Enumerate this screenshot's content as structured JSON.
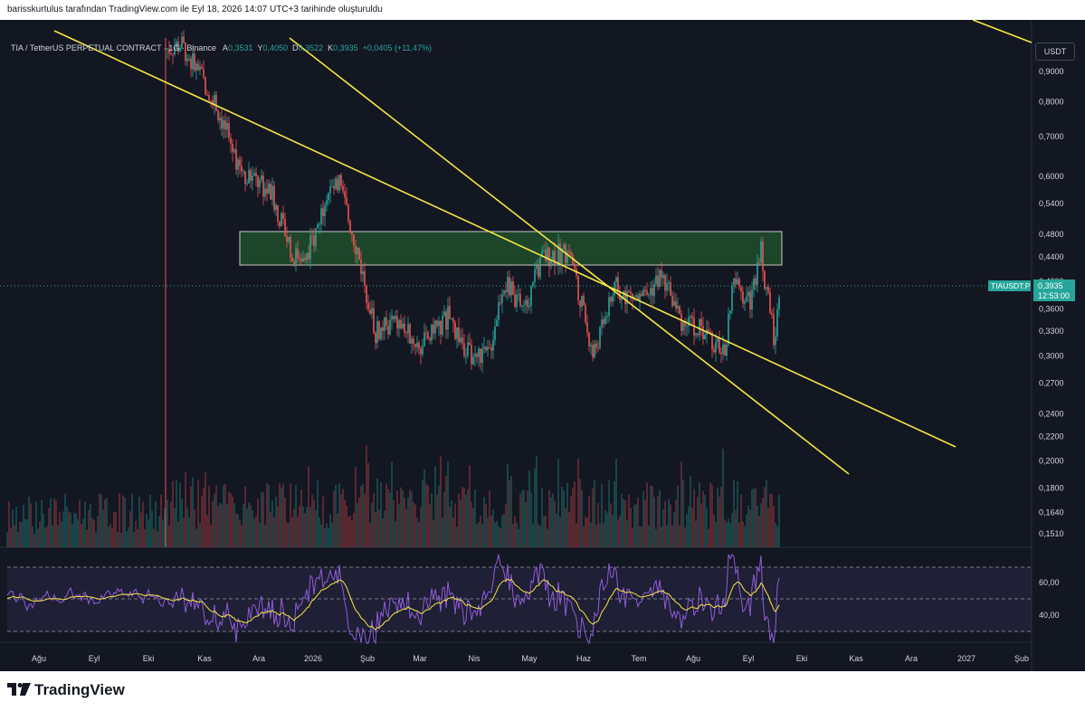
{
  "header": {
    "attribution": "barisskurtulus tarafından TradingView.com ile Eyl 18, 2026 14:07 UTC+3 tarihinde oluşturuldu"
  },
  "legend": {
    "symbol": "TIA / TetherUS PERPETUAL CONTRACT · 1G · Binance",
    "open_label": "A",
    "open": "0,3531",
    "high_label": "Y",
    "high": "0,4050",
    "low_label": "D",
    "low": "0,3522",
    "close_label": "K",
    "close": "0,3935",
    "change": "+0,0405 (+11,47%)"
  },
  "price_scale": {
    "currency": "USDT",
    "ticker": "TIAUSDT.P",
    "last_price": "0,3935",
    "countdown": "12:53:00",
    "ticks": [
      "0,9000",
      "0,8000",
      "0,7000",
      "0,6000",
      "0,5400",
      "0,4800",
      "0,4400",
      "0,4000",
      "0,3600",
      "0,3300",
      "0,3000",
      "0,2700",
      "0,2400",
      "0,2200",
      "0,2000",
      "0,1800",
      "0,1640",
      "0,1510"
    ]
  },
  "rsi_scale": {
    "ticks": [
      "60,00",
      "40,00"
    ]
  },
  "time_axis": {
    "ticks": [
      "Ağu",
      "Eyl",
      "Eki",
      "Kas",
      "Ara",
      "2026",
      "Şub",
      "Mar",
      "Nis",
      "May",
      "Haz",
      "Tem",
      "Ağu",
      "Eyl",
      "Eki",
      "Kas",
      "Ara",
      "2027",
      "Şub"
    ]
  },
  "footer": {
    "brand": "TradingView"
  },
  "colors": {
    "background": "#131722",
    "up": "#26a69a",
    "down": "#ef5350",
    "trendline": "#f5e642",
    "zone_fill": "#1e4d2b",
    "rsi_line": "#8e5cd9",
    "rsi_ma": "#f5e642"
  },
  "chart_data": {
    "type": "candlestick",
    "scale": "log",
    "interval": "1D",
    "symbol": "TIAUSDT.P",
    "last_bar": {
      "open": 0.3531,
      "high": 0.405,
      "low": 0.3522,
      "close": 0.3935
    },
    "approx_closes_monthly": [
      {
        "date": "2025-10",
        "close": 0.95
      },
      {
        "date": "2025-11",
        "close": 0.68
      },
      {
        "date": "2025-12",
        "close": 0.45
      },
      {
        "date": "2026-01",
        "close": 0.44
      },
      {
        "date": "2026-02",
        "close": 0.32
      },
      {
        "date": "2026-03",
        "close": 0.3
      },
      {
        "date": "2026-04",
        "close": 0.37
      },
      {
        "date": "2026-05",
        "close": 0.46
      },
      {
        "date": "2026-06",
        "close": 0.39
      },
      {
        "date": "2026-07",
        "close": 0.37
      },
      {
        "date": "2026-08",
        "close": 0.31
      },
      {
        "date": "2026-09",
        "close": 0.3935
      }
    ],
    "zone": {
      "low": 0.43,
      "high": 0.49
    },
    "indicators": [
      "Volume",
      "RSI"
    ],
    "rsi_levels": [
      70,
      50,
      30
    ]
  }
}
